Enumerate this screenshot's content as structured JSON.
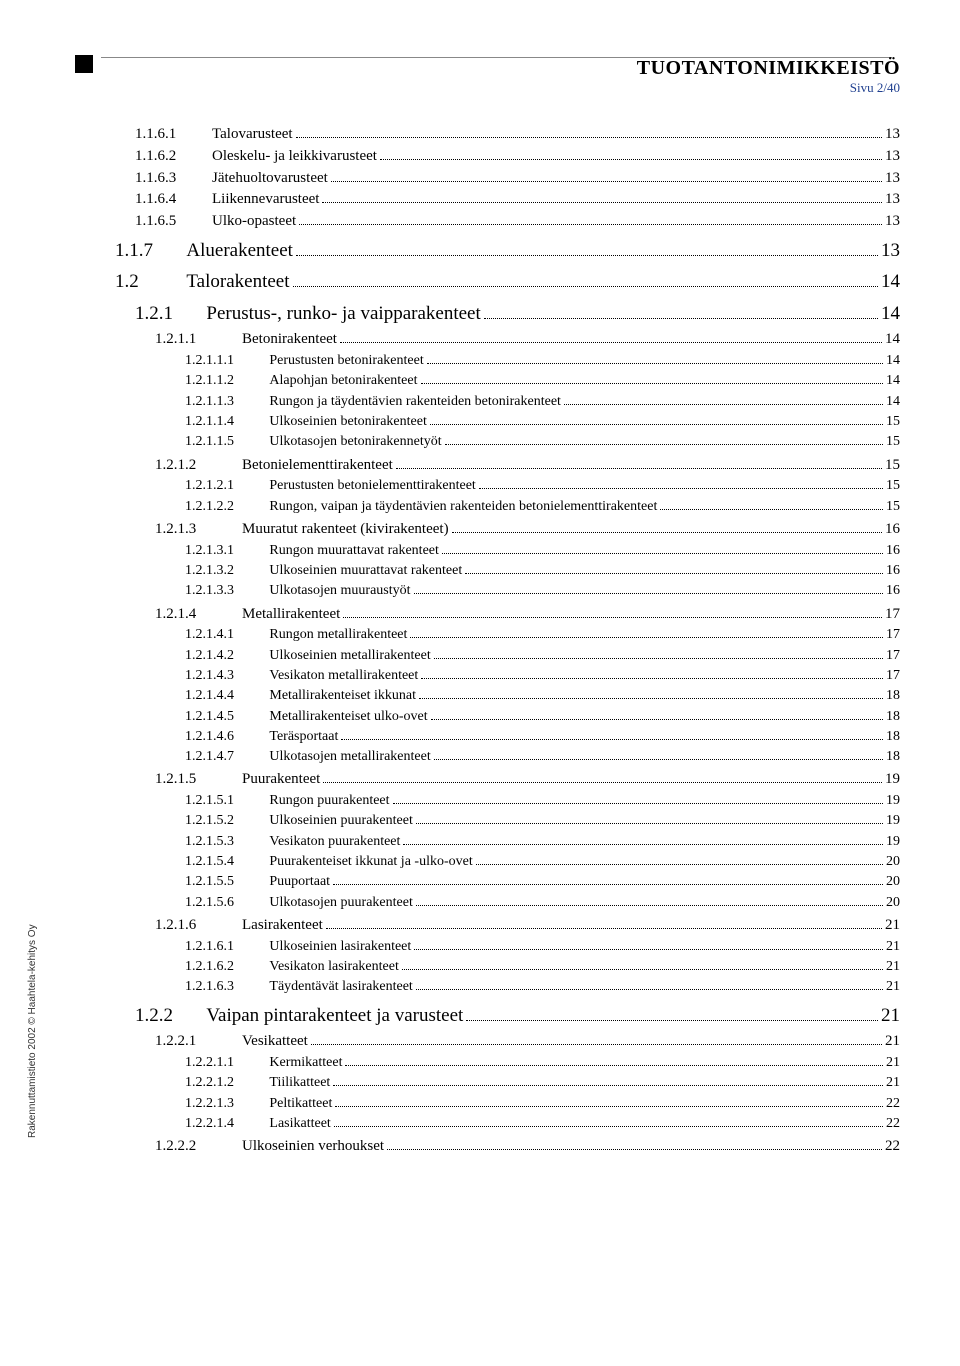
{
  "header": {
    "title": "TUOTANTONIMIKKEISTÖ",
    "page_indicator": "Sivu 2/40"
  },
  "side_label": "Rakennuttamistieto 2002 © Haahtela-kehitys Oy",
  "toc": [
    {
      "level": 0,
      "num": "1.1.6.1",
      "label": "Talovarusteet",
      "page": "13"
    },
    {
      "level": 0,
      "num": "1.1.6.2",
      "label": "Oleskelu- ja leikkivarusteet",
      "page": "13"
    },
    {
      "level": 0,
      "num": "1.1.6.3",
      "label": "Jätehuoltovarusteet",
      "page": "13"
    },
    {
      "level": 0,
      "num": "1.1.6.4",
      "label": "Liikennevarusteet",
      "page": "13"
    },
    {
      "level": 0,
      "num": "1.1.6.5",
      "label": "Ulko-opasteet",
      "page": "13"
    },
    {
      "level": 1,
      "num": "1.1.7",
      "label": "Aluerakenteet",
      "page": "13"
    },
    {
      "level": 1,
      "num": "1.2",
      "label": "Talorakenteet",
      "page": "14"
    },
    {
      "level": 2,
      "num": "1.2.1",
      "label": "Perustus-, runko- ja vaipparakenteet",
      "page": "14"
    },
    {
      "level": 3,
      "num": "1.2.1.1",
      "label": "Betonirakenteet",
      "page": "14"
    },
    {
      "level": 4,
      "num": "1.2.1.1.1",
      "label": "Perustusten betonirakenteet",
      "page": "14"
    },
    {
      "level": 4,
      "num": "1.2.1.1.2",
      "label": "Alapohjan betonirakenteet",
      "page": "14"
    },
    {
      "level": 4,
      "num": "1.2.1.1.3",
      "label": "Rungon ja täydentävien rakenteiden betonirakenteet",
      "page": "14"
    },
    {
      "level": 4,
      "num": "1.2.1.1.4",
      "label": "Ulkoseinien betonirakenteet",
      "page": "15"
    },
    {
      "level": 4,
      "num": "1.2.1.1.5",
      "label": "Ulkotasojen betonirakennetyöt",
      "page": "15"
    },
    {
      "level": 3,
      "num": "1.2.1.2",
      "label": "Betonielementtirakenteet",
      "page": "15"
    },
    {
      "level": 4,
      "num": "1.2.1.2.1",
      "label": "Perustusten betonielementtirakenteet",
      "page": "15"
    },
    {
      "level": 4,
      "num": "1.2.1.2.2",
      "label": "Rungon, vaipan ja täydentävien rakenteiden betonielementtirakenteet",
      "page": "15"
    },
    {
      "level": 3,
      "num": "1.2.1.3",
      "label": "Muuratut rakenteet (kivirakenteet)",
      "page": "16"
    },
    {
      "level": 4,
      "num": "1.2.1.3.1",
      "label": "Rungon muurattavat rakenteet",
      "page": "16"
    },
    {
      "level": 4,
      "num": "1.2.1.3.2",
      "label": "Ulkoseinien muurattavat rakenteet",
      "page": "16"
    },
    {
      "level": 4,
      "num": "1.2.1.3.3",
      "label": "Ulkotasojen muuraustyöt",
      "page": "16"
    },
    {
      "level": 3,
      "num": "1.2.1.4",
      "label": "Metallirakenteet",
      "page": "17"
    },
    {
      "level": 4,
      "num": "1.2.1.4.1",
      "label": "Rungon metallirakenteet",
      "page": "17"
    },
    {
      "level": 4,
      "num": "1.2.1.4.2",
      "label": "Ulkoseinien metallirakenteet",
      "page": "17"
    },
    {
      "level": 4,
      "num": "1.2.1.4.3",
      "label": "Vesikaton metallirakenteet",
      "page": "17"
    },
    {
      "level": 4,
      "num": "1.2.1.4.4",
      "label": "Metallirakenteiset ikkunat",
      "page": "18"
    },
    {
      "level": 4,
      "num": "1.2.1.4.5",
      "label": "Metallirakenteiset ulko-ovet",
      "page": "18"
    },
    {
      "level": 4,
      "num": "1.2.1.4.6",
      "label": "Teräsportaat",
      "page": "18"
    },
    {
      "level": 4,
      "num": "1.2.1.4.7",
      "label": "Ulkotasojen metallirakenteet",
      "page": "18"
    },
    {
      "level": 3,
      "num": "1.2.1.5",
      "label": "Puurakenteet",
      "page": "19"
    },
    {
      "level": 4,
      "num": "1.2.1.5.1",
      "label": "Rungon puurakenteet",
      "page": "19"
    },
    {
      "level": 4,
      "num": "1.2.1.5.2",
      "label": "Ulkoseinien puurakenteet",
      "page": "19"
    },
    {
      "level": 4,
      "num": "1.2.1.5.3",
      "label": "Vesikaton puurakenteet",
      "page": "19"
    },
    {
      "level": 4,
      "num": "1.2.1.5.4",
      "label": "Puurakenteiset ikkunat ja -ulko-ovet",
      "page": "20"
    },
    {
      "level": 4,
      "num": "1.2.1.5.5",
      "label": "Puuportaat",
      "page": "20"
    },
    {
      "level": 4,
      "num": "1.2.1.5.6",
      "label": "Ulkotasojen puurakenteet",
      "page": "20"
    },
    {
      "level": 3,
      "num": "1.2.1.6",
      "label": "Lasirakenteet",
      "page": "21"
    },
    {
      "level": 4,
      "num": "1.2.1.6.1",
      "label": "Ulkoseinien lasirakenteet",
      "page": "21"
    },
    {
      "level": 4,
      "num": "1.2.1.6.2",
      "label": "Vesikaton lasirakenteet",
      "page": "21"
    },
    {
      "level": 4,
      "num": "1.2.1.6.3",
      "label": "Täydentävät lasirakenteet",
      "page": "21"
    },
    {
      "level": 2,
      "num": "1.2.2",
      "label": "Vaipan pintarakenteet ja varusteet",
      "page": "21"
    },
    {
      "level": 3,
      "num": "1.2.2.1",
      "label": "Vesikatteet",
      "page": "21"
    },
    {
      "level": 4,
      "num": "1.2.2.1.1",
      "label": "Kermikatteet",
      "page": "21"
    },
    {
      "level": 4,
      "num": "1.2.2.1.2",
      "label": "Tiilikatteet",
      "page": "21"
    },
    {
      "level": 4,
      "num": "1.2.2.1.3",
      "label": "Peltikatteet",
      "page": "22"
    },
    {
      "level": 4,
      "num": "1.2.2.1.4",
      "label": "Lasikatteet",
      "page": "22"
    },
    {
      "level": 3,
      "num": "1.2.2.2",
      "label": "Ulkoseinien verhoukset",
      "page": "22"
    }
  ]
}
